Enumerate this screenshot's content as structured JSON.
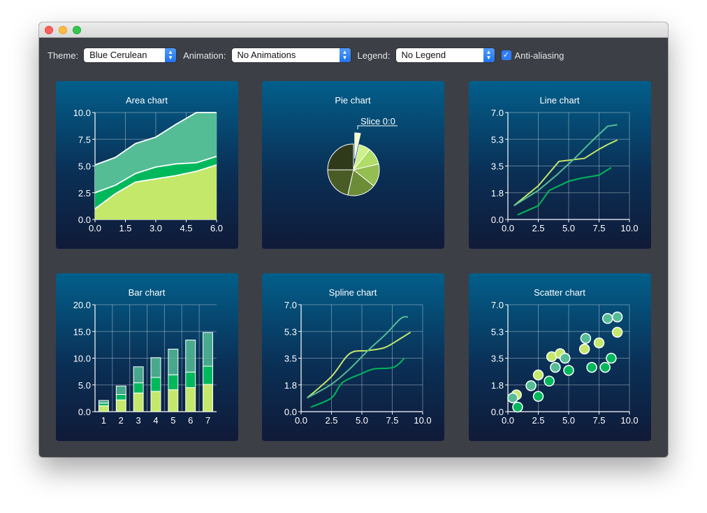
{
  "toolbar": {
    "theme_label": "Theme:",
    "theme_value": "Blue Cerulean",
    "animation_label": "Animation:",
    "animation_value": "No Animations",
    "legend_label": "Legend:",
    "legend_value": "No Legend",
    "antialias_label": "Anti-aliasing",
    "antialias_checked": true
  },
  "colors": {
    "series1": "#c4e86a",
    "series2": "#00b85c",
    "series3": "#54bd96",
    "pie": [
      "#cdf08a",
      "#b0dc68",
      "#94bd52",
      "#6c8c38",
      "#4a5c26",
      "#2e3a1a"
    ]
  },
  "chart_data": [
    {
      "type": "area",
      "title": "Area chart",
      "x": [
        0,
        1,
        2,
        3,
        4,
        5,
        6
      ],
      "series": [
        {
          "values": [
            1.0,
            2.4,
            3.5,
            3.8,
            4.1,
            4.5,
            5.1
          ]
        },
        {
          "values": [
            2.5,
            3.2,
            4.3,
            4.9,
            5.2,
            5.3,
            5.9
          ]
        },
        {
          "values": [
            5.1,
            5.8,
            7.1,
            7.7,
            8.9,
            10.0,
            10.0
          ]
        }
      ],
      "xlim": [
        0,
        6
      ],
      "ylim": [
        0,
        10
      ],
      "xticks": [
        "0.0",
        "1.5",
        "3.0",
        "4.5",
        "6.0"
      ],
      "yticks": [
        "0.0",
        "2.5",
        "5.0",
        "7.5",
        "10.0"
      ],
      "grid": true
    },
    {
      "type": "pie",
      "title": "Pie chart",
      "slice_label": "Slice 0:0",
      "values": [
        1,
        2,
        3,
        4,
        5,
        6,
        7
      ]
    },
    {
      "type": "line",
      "title": "Line chart",
      "xlim": [
        0,
        10
      ],
      "ylim": [
        0,
        7
      ],
      "xticks": [
        "0.0",
        "2.5",
        "5.0",
        "7.5",
        "10.0"
      ],
      "yticks": [
        "0.0",
        "1.8",
        "3.5",
        "5.3",
        "7.0"
      ],
      "grid": true,
      "series": [
        {
          "x": [
            0.5,
            2.5,
            4.2,
            6.3,
            7.5,
            8.2,
            9.0
          ],
          "y": [
            0.9,
            2.2,
            3.8,
            4.0,
            4.6,
            4.9,
            5.2
          ]
        },
        {
          "x": [
            0.8,
            2.5,
            3.4,
            5.0,
            6.0,
            7.5,
            8.5
          ],
          "y": [
            0.3,
            0.9,
            1.9,
            2.5,
            2.7,
            2.9,
            3.4
          ]
        },
        {
          "x": [
            0.5,
            2.5,
            4.0,
            5.5,
            7.0,
            8.2,
            9.0
          ],
          "y": [
            0.9,
            1.9,
            2.9,
            4.0,
            5.2,
            6.1,
            6.2
          ]
        }
      ]
    },
    {
      "type": "bar",
      "title": "Bar chart",
      "categories": [
        "1",
        "2",
        "3",
        "4",
        "5",
        "6",
        "7"
      ],
      "stacked": true,
      "ylim": [
        0,
        20
      ],
      "yticks": [
        "0.0",
        "5.0",
        "10.0",
        "15.0",
        "20.0"
      ],
      "grid": true,
      "series": [
        {
          "values": [
            1.1,
            2.2,
            3.5,
            3.8,
            4.1,
            4.5,
            5.1
          ]
        },
        {
          "values": [
            0.5,
            1.0,
            1.9,
            2.6,
            2.8,
            2.9,
            3.4
          ]
        },
        {
          "values": [
            0.5,
            1.6,
            3.0,
            3.7,
            4.8,
            6.0,
            6.3
          ]
        }
      ]
    },
    {
      "type": "spline",
      "title": "Spline chart",
      "xlim": [
        0,
        10
      ],
      "ylim": [
        0,
        7
      ],
      "xticks": [
        "0.0",
        "2.5",
        "5.0",
        "7.5",
        "10.0"
      ],
      "yticks": [
        "0.0",
        "1.8",
        "3.5",
        "5.3",
        "7.0"
      ],
      "grid": true,
      "series": [
        {
          "x": [
            0.5,
            2.5,
            4.0,
            5.5,
            6.9,
            8.2,
            9.0
          ],
          "y": [
            0.9,
            2.3,
            3.8,
            4.0,
            4.2,
            4.8,
            5.2
          ]
        },
        {
          "x": [
            0.8,
            2.5,
            3.4,
            5.0,
            6.0,
            7.6,
            8.5
          ],
          "y": [
            0.3,
            0.9,
            1.9,
            2.5,
            2.8,
            2.9,
            3.5
          ]
        },
        {
          "x": [
            0.5,
            2.5,
            4.0,
            5.5,
            7.0,
            8.2,
            8.8
          ],
          "y": [
            0.9,
            1.8,
            2.8,
            4.0,
            5.1,
            6.1,
            6.2
          ]
        }
      ]
    },
    {
      "type": "scatter",
      "title": "Scatter chart",
      "xlim": [
        0,
        10
      ],
      "ylim": [
        0,
        7
      ],
      "xticks": [
        "0.0",
        "2.5",
        "5.0",
        "7.5",
        "10.0"
      ],
      "yticks": [
        "0.0",
        "1.8",
        "3.5",
        "5.3",
        "7.0"
      ],
      "grid": true,
      "series": [
        {
          "x": [
            0.7,
            2.5,
            3.6,
            4.3,
            6.3,
            7.5,
            9.0
          ],
          "y": [
            1.1,
            2.4,
            3.6,
            3.8,
            4.1,
            4.5,
            5.2
          ]
        },
        {
          "x": [
            0.8,
            2.5,
            3.4,
            5.0,
            6.9,
            8.0,
            8.5
          ],
          "y": [
            0.3,
            1.0,
            2.0,
            2.7,
            2.9,
            2.9,
            3.5
          ]
        },
        {
          "x": [
            0.4,
            1.9,
            3.9,
            4.7,
            6.4,
            8.2,
            9.0
          ],
          "y": [
            0.9,
            1.7,
            2.9,
            3.5,
            4.8,
            6.1,
            6.2
          ]
        }
      ]
    }
  ]
}
